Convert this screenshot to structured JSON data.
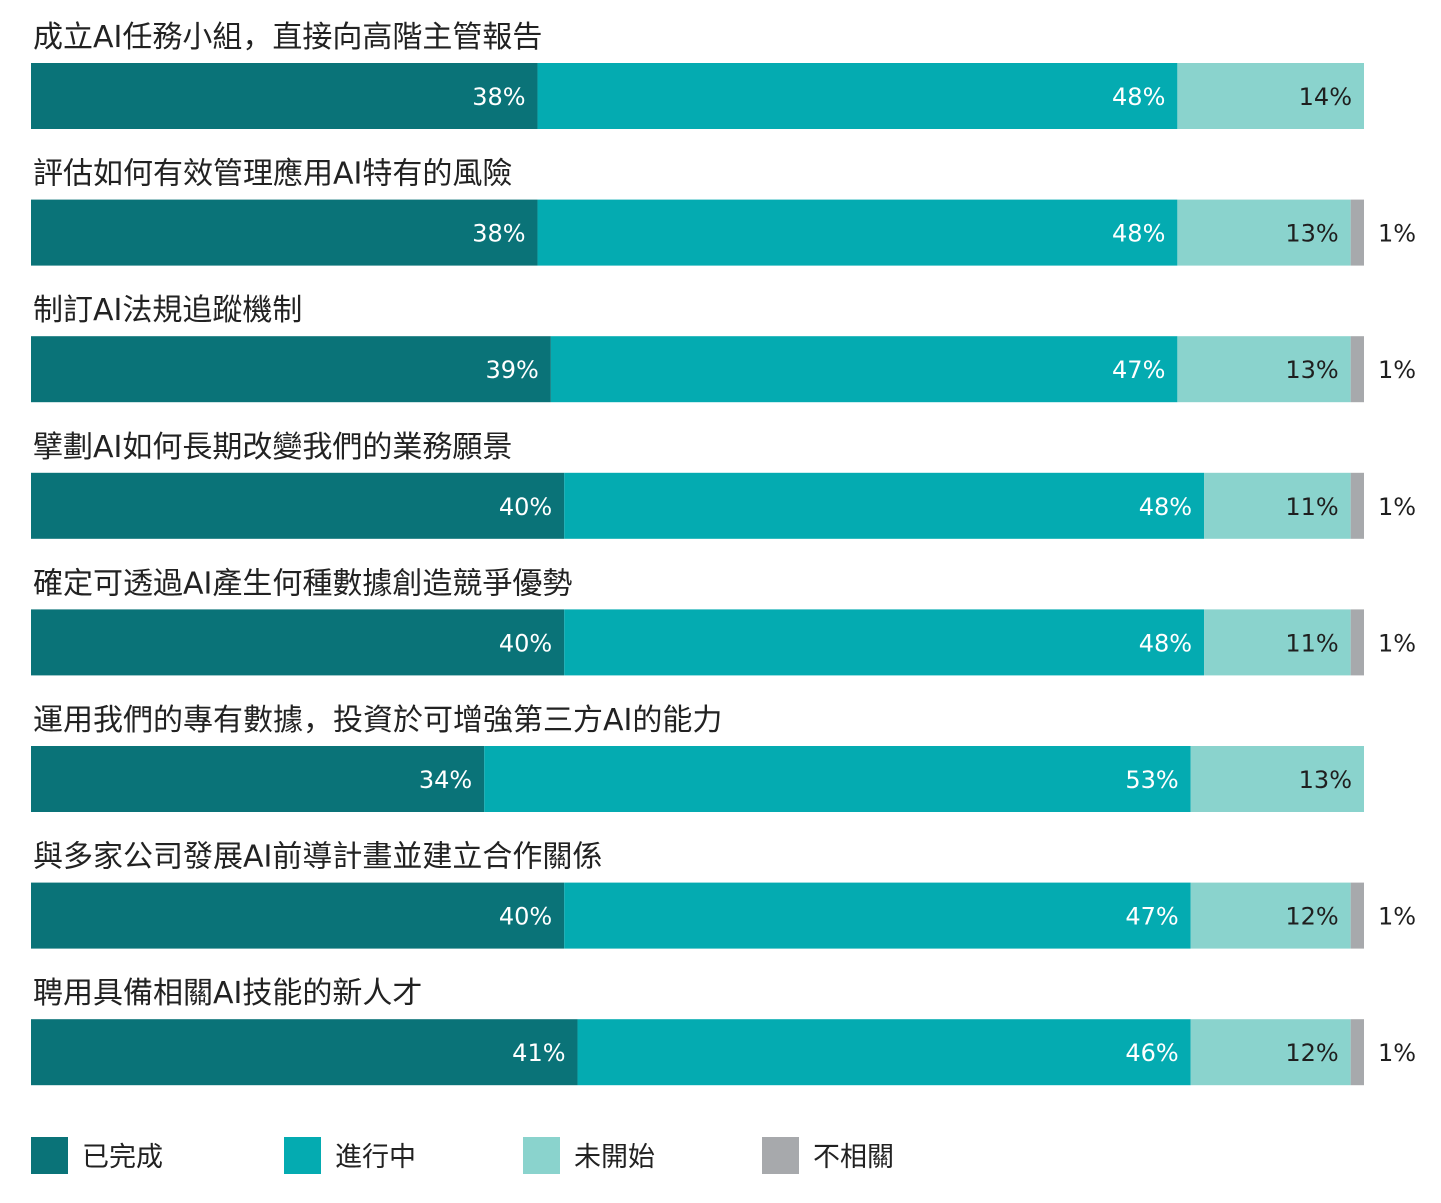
{
  "chart_data": {
    "type": "bar",
    "stacked": true,
    "orientation": "horizontal",
    "categories": [
      "成立AI任務小組，直接向高階主管報告",
      "評估如何有效管理應用AI特有的風險",
      "制訂AI法規追蹤機制",
      "擘劃AI如何長期改變我們的業務願景",
      "確定可透過AI產生何種數據創造競爭優勢",
      "運用我們的專有數據，投資於可增強第三方AI的能力",
      "與多家公司發展AI前導計畫並建立合作關係",
      "聘用具備相關AI技能的新人才"
    ],
    "series": [
      {
        "name": "已完成",
        "color": "#0a7378",
        "values": [
          38,
          38,
          39,
          40,
          40,
          34,
          40,
          41
        ]
      },
      {
        "name": "進行中",
        "color": "#04abb1",
        "values": [
          48,
          48,
          47,
          48,
          48,
          53,
          47,
          46
        ]
      },
      {
        "name": "未開始",
        "color": "#8ad3cd",
        "values": [
          14,
          13,
          13,
          11,
          11,
          13,
          12,
          12
        ]
      },
      {
        "name": "不相關",
        "color": "#a7a9ac",
        "values": [
          0,
          1,
          1,
          1,
          1,
          0,
          1,
          1
        ]
      }
    ],
    "unit": "%",
    "legend_position": "bottom-left",
    "grid": false
  }
}
